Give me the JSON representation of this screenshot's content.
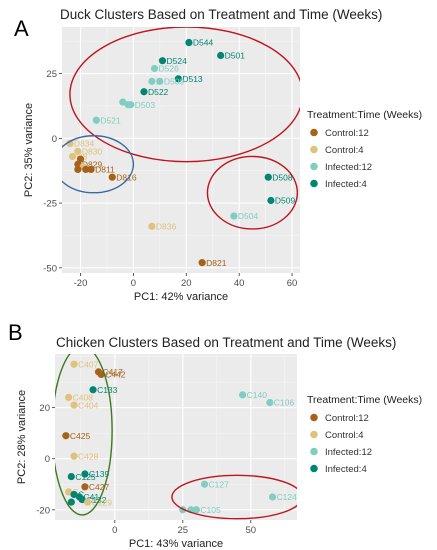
{
  "panel_a_letter": "A",
  "panel_b_letter": "B",
  "chart_data": [
    {
      "type": "scatter",
      "title": "Duck Clusters Based on Treatment and Time (Weeks)",
      "xlabel": "PC1: 42% variance",
      "ylabel": "PC2: 35% variance",
      "xlim": [
        -27,
        63
      ],
      "ylim": [
        -52,
        43
      ],
      "xticks": [
        -20,
        0,
        20,
        40,
        60
      ],
      "yticks": [
        25,
        0,
        -25,
        -50
      ],
      "grid": true,
      "legend_title": "Treatment:Time (Weeks)",
      "legend_position": "right",
      "legend": [
        {
          "name": "Control:12",
          "color": "#a6611a"
        },
        {
          "name": "Control:4",
          "color": "#dfc27d"
        },
        {
          "name": "Infected:12",
          "color": "#80cdc1"
        },
        {
          "name": "Infected:4",
          "color": "#018571"
        }
      ],
      "points": [
        {
          "label": "D544",
          "x": 21,
          "y": 37,
          "group": "Infected:4"
        },
        {
          "label": "D501",
          "x": 33,
          "y": 32,
          "group": "Infected:4"
        },
        {
          "label": "D524",
          "x": 11,
          "y": 30,
          "group": "Infected:4"
        },
        {
          "label": "D526",
          "x": 8,
          "y": 27,
          "group": "Infected:12"
        },
        {
          "label": "D513",
          "x": 17,
          "y": 23,
          "group": "Infected:4"
        },
        {
          "label": "D509",
          "x": 10,
          "y": 22,
          "group": "Infected:12"
        },
        {
          "label": "D",
          "x": 7,
          "y": 22,
          "group": "Infected:12"
        },
        {
          "label": "D522",
          "x": 4,
          "y": 18,
          "group": "Infected:4"
        },
        {
          "label": "D503",
          "x": -1,
          "y": 13,
          "group": "Infected:12"
        },
        {
          "label": "",
          "x": -4,
          "y": 14,
          "group": "Infected:12"
        },
        {
          "label": "",
          "x": -2,
          "y": 13,
          "group": "Infected:12"
        },
        {
          "label": "D521",
          "x": -14,
          "y": 7,
          "group": "Infected:12"
        },
        {
          "label": "D834",
          "x": -24,
          "y": -2,
          "group": "Control:4"
        },
        {
          "label": "D830",
          "x": -21,
          "y": -5,
          "group": "Control:4"
        },
        {
          "label": "D8",
          "x": -23,
          "y": -7,
          "group": "Control:4"
        },
        {
          "label": "",
          "x": -20,
          "y": -8,
          "group": "Control:12"
        },
        {
          "label": "D829",
          "x": -21,
          "y": -10,
          "group": "Control:12"
        },
        {
          "label": "",
          "x": -19,
          "y": -11,
          "group": "Control:4"
        },
        {
          "label": "D811",
          "x": -16,
          "y": -12,
          "group": "Control:12"
        },
        {
          "label": "",
          "x": -21,
          "y": -12,
          "group": "Control:12"
        },
        {
          "label": "",
          "x": -18,
          "y": -12,
          "group": "Control:12"
        },
        {
          "label": "D816",
          "x": -8,
          "y": -15,
          "group": "Control:12"
        },
        {
          "label": "D836",
          "x": 7,
          "y": -34,
          "group": "Control:4"
        },
        {
          "label": "D821",
          "x": 26,
          "y": -48,
          "group": "Control:12"
        },
        {
          "label": "D508",
          "x": 51,
          "y": -15,
          "group": "Infected:4"
        },
        {
          "label": "D509",
          "x": 52,
          "y": -24,
          "group": "Infected:4"
        },
        {
          "label": "D504",
          "x": 38,
          "y": -30,
          "group": "Infected:12"
        }
      ],
      "ellipses": [
        {
          "cx": 20,
          "cy": 17,
          "rx": 44,
          "ry": 26,
          "color": "#c0141c"
        },
        {
          "cx": -15,
          "cy": -10,
          "rx": 15,
          "ry": 11,
          "color": "#3a6aa0"
        },
        {
          "cx": 45,
          "cy": -21,
          "rx": 17,
          "ry": 14,
          "color": "#c0141c"
        }
      ]
    },
    {
      "type": "scatter",
      "title": "Chicken Clusters Based on Treatment and Time (Weeks)",
      "xlabel": "PC1: 43% variance",
      "ylabel": "PC2: 28% variance",
      "xlim": [
        -22,
        67
      ],
      "ylim": [
        -24,
        41
      ],
      "xticks": [
        0,
        25,
        50
      ],
      "yticks": [
        20,
        0,
        -20
      ],
      "grid": true,
      "legend_title": "Treatment:Time (Weeks)",
      "legend_position": "right",
      "legend": [
        {
          "name": "Control:12",
          "color": "#a6611a"
        },
        {
          "name": "Control:4",
          "color": "#dfc27d"
        },
        {
          "name": "Infected:12",
          "color": "#80cdc1"
        },
        {
          "name": "Infected:4",
          "color": "#018571"
        }
      ],
      "points": [
        {
          "label": "C407",
          "x": -15,
          "y": 37,
          "group": "Control:4"
        },
        {
          "label": "C417",
          "x": -6,
          "y": 34,
          "group": "Control:12"
        },
        {
          "label": "C442",
          "x": -5,
          "y": 33,
          "group": "Control:12"
        },
        {
          "label": "C133",
          "x": -8,
          "y": 27,
          "group": "Infected:4"
        },
        {
          "label": "C408",
          "x": -17,
          "y": 24,
          "group": "Control:4"
        },
        {
          "label": "C404",
          "x": -15,
          "y": 21,
          "group": "Control:4"
        },
        {
          "label": "C425",
          "x": -18,
          "y": 9,
          "group": "Control:12"
        },
        {
          "label": "C428",
          "x": -15,
          "y": 1,
          "group": "Control:4"
        },
        {
          "label": "C139",
          "x": -11,
          "y": -6,
          "group": "Infected:4"
        },
        {
          "label": "C125",
          "x": -16,
          "y": -7,
          "group": "Infected:4"
        },
        {
          "label": "C427",
          "x": -11,
          "y": -11,
          "group": "Control:12"
        },
        {
          "label": "C",
          "x": -17,
          "y": -13,
          "group": "Control:4"
        },
        {
          "label": "C",
          "x": -15,
          "y": -14,
          "group": "Infected:4"
        },
        {
          "label": "C41",
          "x": -13,
          "y": -15,
          "group": "Infected:4"
        },
        {
          "label": "C132",
          "x": -12,
          "y": -16,
          "group": "Infected:4"
        },
        {
          "label": "C129",
          "x": -10,
          "y": -17,
          "group": "Control:4"
        },
        {
          "label": "",
          "x": -16,
          "y": -17,
          "group": "Infected:4"
        },
        {
          "label": "C140",
          "x": 47,
          "y": 25,
          "group": "Infected:12"
        },
        {
          "label": "C106",
          "x": 57,
          "y": 22,
          "group": "Infected:12"
        },
        {
          "label": "C127",
          "x": 33,
          "y": -10,
          "group": "Infected:12"
        },
        {
          "label": "C124",
          "x": 58,
          "y": -15,
          "group": "Infected:12"
        },
        {
          "label": "C",
          "x": 25,
          "y": -20,
          "group": "Infected:12"
        },
        {
          "label": "",
          "x": 28,
          "y": -20,
          "group": "Infected:12"
        },
        {
          "label": "C105",
          "x": 30,
          "y": -20,
          "group": "Infected:12"
        }
      ],
      "ellipses": [
        {
          "cx": -12,
          "cy": 11,
          "rx": 11,
          "ry": 33,
          "color": "#3d7a22"
        },
        {
          "cx": 45,
          "cy": -15,
          "rx": 24,
          "ry": 8.5,
          "color": "#c0141c"
        }
      ]
    }
  ]
}
